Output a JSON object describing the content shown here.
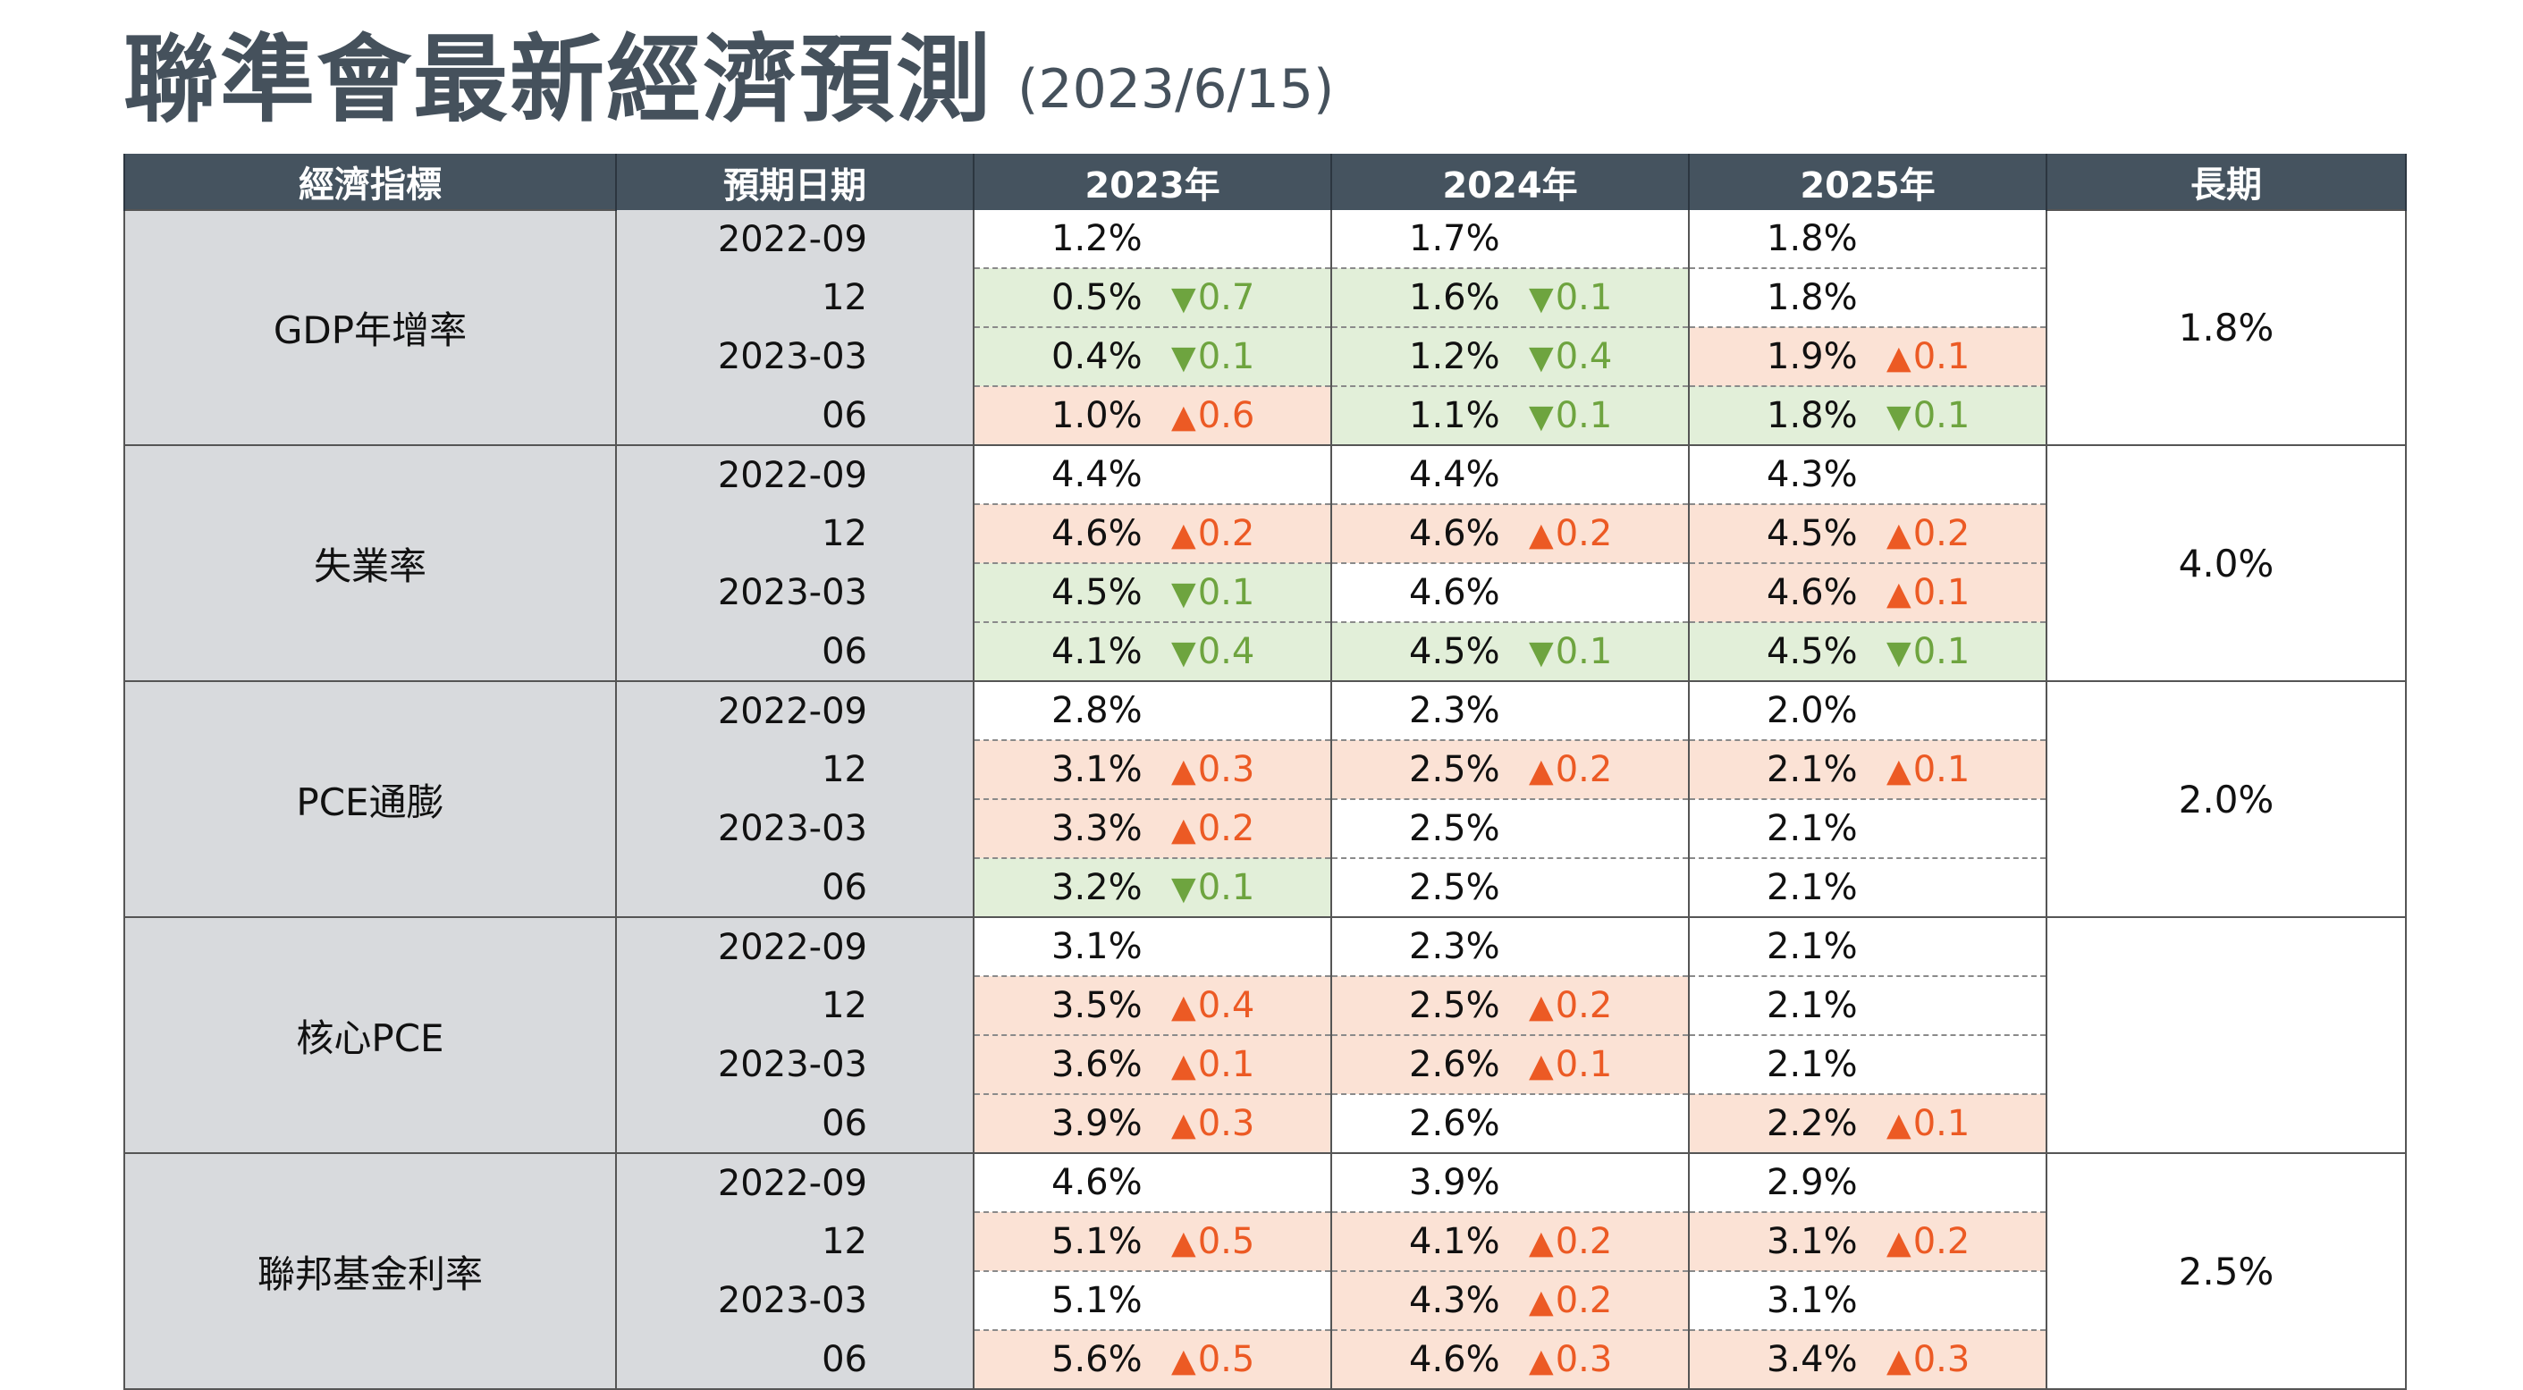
{
  "title": "聯準會最新經濟預測",
  "date": "(2023/6/15)",
  "headers": [
    "經濟指標",
    "預期日期",
    "2023年",
    "2024年",
    "2025年",
    "長期"
  ],
  "arrow_up": "▲",
  "arrow_down": "▼",
  "colors": {
    "up_bg": "#fbe2d5",
    "down_bg": "#e2efd9",
    "up_text": "#ec5a24",
    "down_text": "#6ea43f",
    "header_bg": "#45535f"
  },
  "groups": [
    {
      "name": "GDP年增率",
      "long": "1.8%",
      "rows": [
        {
          "date": "2022-09",
          "cells": [
            {
              "v": "1.2%",
              "dir": "none",
              "chg": ""
            },
            {
              "v": "1.7%",
              "dir": "none",
              "chg": ""
            },
            {
              "v": "1.8%",
              "dir": "none",
              "chg": ""
            }
          ]
        },
        {
          "date": "12",
          "cells": [
            {
              "v": "0.5%",
              "dir": "down",
              "chg": "0.7"
            },
            {
              "v": "1.6%",
              "dir": "down",
              "chg": "0.1"
            },
            {
              "v": "1.8%",
              "dir": "none",
              "chg": ""
            }
          ]
        },
        {
          "date": "2023-03",
          "cells": [
            {
              "v": "0.4%",
              "dir": "down",
              "chg": "0.1"
            },
            {
              "v": "1.2%",
              "dir": "down",
              "chg": "0.4"
            },
            {
              "v": "1.9%",
              "dir": "up",
              "chg": "0.1"
            }
          ]
        },
        {
          "date": "06",
          "cells": [
            {
              "v": "1.0%",
              "dir": "up",
              "chg": "0.6"
            },
            {
              "v": "1.1%",
              "dir": "down",
              "chg": "0.1"
            },
            {
              "v": "1.8%",
              "dir": "down",
              "chg": "0.1"
            }
          ]
        }
      ]
    },
    {
      "name": "失業率",
      "long": "4.0%",
      "rows": [
        {
          "date": "2022-09",
          "cells": [
            {
              "v": "4.4%",
              "dir": "none",
              "chg": ""
            },
            {
              "v": "4.4%",
              "dir": "none",
              "chg": ""
            },
            {
              "v": "4.3%",
              "dir": "none",
              "chg": ""
            }
          ]
        },
        {
          "date": "12",
          "cells": [
            {
              "v": "4.6%",
              "dir": "up",
              "chg": "0.2"
            },
            {
              "v": "4.6%",
              "dir": "up",
              "chg": "0.2"
            },
            {
              "v": "4.5%",
              "dir": "up",
              "chg": "0.2"
            }
          ]
        },
        {
          "date": "2023-03",
          "cells": [
            {
              "v": "4.5%",
              "dir": "down",
              "chg": "0.1"
            },
            {
              "v": "4.6%",
              "dir": "none",
              "chg": ""
            },
            {
              "v": "4.6%",
              "dir": "up",
              "chg": "0.1"
            }
          ]
        },
        {
          "date": "06",
          "cells": [
            {
              "v": "4.1%",
              "dir": "down",
              "chg": "0.4"
            },
            {
              "v": "4.5%",
              "dir": "down",
              "chg": "0.1"
            },
            {
              "v": "4.5%",
              "dir": "down",
              "chg": "0.1"
            }
          ]
        }
      ]
    },
    {
      "name": "PCE通膨",
      "long": "2.0%",
      "rows": [
        {
          "date": "2022-09",
          "cells": [
            {
              "v": "2.8%",
              "dir": "none",
              "chg": ""
            },
            {
              "v": "2.3%",
              "dir": "none",
              "chg": ""
            },
            {
              "v": "2.0%",
              "dir": "none",
              "chg": ""
            }
          ]
        },
        {
          "date": "12",
          "cells": [
            {
              "v": "3.1%",
              "dir": "up",
              "chg": "0.3"
            },
            {
              "v": "2.5%",
              "dir": "up",
              "chg": "0.2"
            },
            {
              "v": "2.1%",
              "dir": "up",
              "chg": "0.1"
            }
          ]
        },
        {
          "date": "2023-03",
          "cells": [
            {
              "v": "3.3%",
              "dir": "up",
              "chg": "0.2"
            },
            {
              "v": "2.5%",
              "dir": "none",
              "chg": ""
            },
            {
              "v": "2.1%",
              "dir": "none",
              "chg": ""
            }
          ]
        },
        {
          "date": "06",
          "cells": [
            {
              "v": "3.2%",
              "dir": "down",
              "chg": "0.1"
            },
            {
              "v": "2.5%",
              "dir": "none",
              "chg": ""
            },
            {
              "v": "2.1%",
              "dir": "none",
              "chg": ""
            }
          ]
        }
      ]
    },
    {
      "name": "核心PCE",
      "long": "",
      "rows": [
        {
          "date": "2022-09",
          "cells": [
            {
              "v": "3.1%",
              "dir": "none",
              "chg": ""
            },
            {
              "v": "2.3%",
              "dir": "none",
              "chg": ""
            },
            {
              "v": "2.1%",
              "dir": "none",
              "chg": ""
            }
          ]
        },
        {
          "date": "12",
          "cells": [
            {
              "v": "3.5%",
              "dir": "up",
              "chg": "0.4"
            },
            {
              "v": "2.5%",
              "dir": "up",
              "chg": "0.2"
            },
            {
              "v": "2.1%",
              "dir": "none",
              "chg": ""
            }
          ]
        },
        {
          "date": "2023-03",
          "cells": [
            {
              "v": "3.6%",
              "dir": "up",
              "chg": "0.1"
            },
            {
              "v": "2.6%",
              "dir": "up",
              "chg": "0.1"
            },
            {
              "v": "2.1%",
              "dir": "none",
              "chg": ""
            }
          ]
        },
        {
          "date": "06",
          "cells": [
            {
              "v": "3.9%",
              "dir": "up",
              "chg": "0.3"
            },
            {
              "v": "2.6%",
              "dir": "none",
              "chg": ""
            },
            {
              "v": "2.2%",
              "dir": "up",
              "chg": "0.1"
            }
          ]
        }
      ]
    },
    {
      "name": "聯邦基金利率",
      "long": "2.5%",
      "rows": [
        {
          "date": "2022-09",
          "cells": [
            {
              "v": "4.6%",
              "dir": "none",
              "chg": ""
            },
            {
              "v": "3.9%",
              "dir": "none",
              "chg": ""
            },
            {
              "v": "2.9%",
              "dir": "none",
              "chg": ""
            }
          ]
        },
        {
          "date": "12",
          "cells": [
            {
              "v": "5.1%",
              "dir": "up",
              "chg": "0.5"
            },
            {
              "v": "4.1%",
              "dir": "up",
              "chg": "0.2"
            },
            {
              "v": "3.1%",
              "dir": "up",
              "chg": "0.2"
            }
          ]
        },
        {
          "date": "2023-03",
          "cells": [
            {
              "v": "5.1%",
              "dir": "none",
              "chg": ""
            },
            {
              "v": "4.3%",
              "dir": "up",
              "chg": "0.2"
            },
            {
              "v": "3.1%",
              "dir": "none",
              "chg": ""
            }
          ]
        },
        {
          "date": "06",
          "cells": [
            {
              "v": "5.6%",
              "dir": "up",
              "chg": "0.5"
            },
            {
              "v": "4.6%",
              "dir": "up",
              "chg": "0.3"
            },
            {
              "v": "3.4%",
              "dir": "up",
              "chg": "0.3"
            }
          ]
        }
      ]
    }
  ]
}
